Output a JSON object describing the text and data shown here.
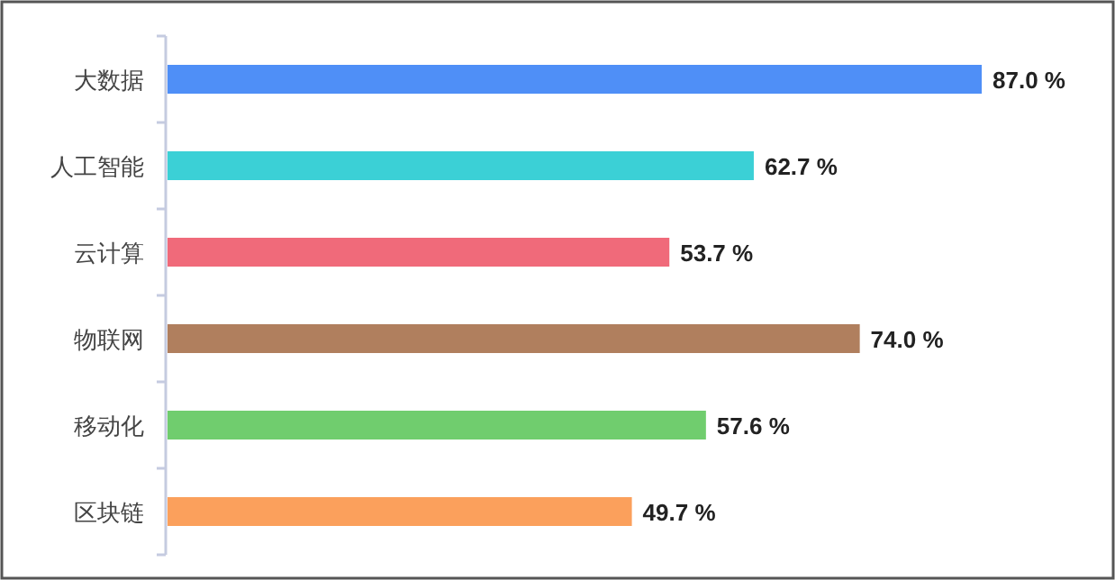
{
  "chart_data": {
    "type": "bar",
    "orientation": "horizontal",
    "categories": [
      "大数据",
      "人工智能",
      "云计算",
      "物联网",
      "移动化",
      "区块链"
    ],
    "values": [
      87.0,
      62.7,
      53.7,
      74.0,
      57.6,
      49.7
    ],
    "colors": [
      "#4f8ff7",
      "#3bd0d6",
      "#f06a7a",
      "#b07f5e",
      "#70cd6e",
      "#fba05c"
    ],
    "value_labels": [
      "87.0 %",
      "62.7 %",
      "53.7 %",
      "74.0 %",
      "57.6 %",
      "49.7 %"
    ]
  }
}
